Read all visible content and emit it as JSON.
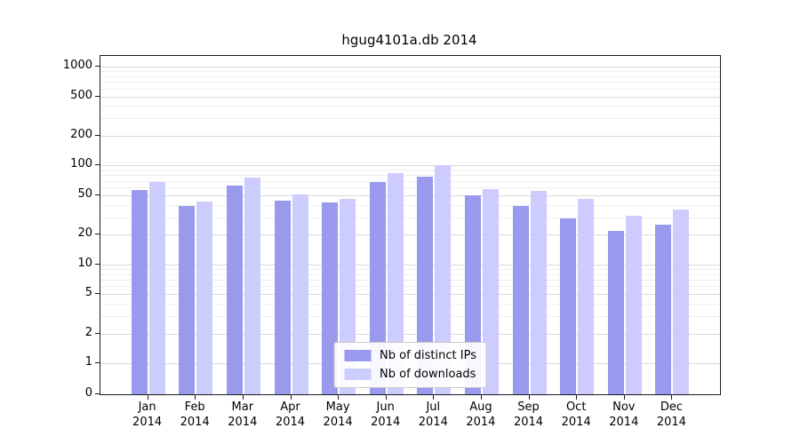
{
  "chart_data": {
    "type": "bar",
    "title": "hgug4101a.db 2014",
    "categories": [
      "Jan",
      "Feb",
      "Mar",
      "Apr",
      "May",
      "Jun",
      "Jul",
      "Aug",
      "Sep",
      "Oct",
      "Nov",
      "Dec"
    ],
    "year": "2014",
    "series": [
      {
        "name": "Nb of distinct IPs",
        "color": "#9999ee",
        "values": [
          57,
          39,
          62,
          44,
          42,
          68,
          77,
          50,
          39,
          29,
          22,
          25
        ]
      },
      {
        "name": "Nb of downloads",
        "color": "#ccccff",
        "values": [
          68,
          43,
          75,
          51,
          46,
          84,
          100,
          58,
          55,
          46,
          31,
          36
        ]
      }
    ],
    "yscale": "symlog",
    "yticks": [
      0,
      1,
      2,
      5,
      10,
      20,
      50,
      100,
      200,
      500,
      1000
    ],
    "ylim": [
      0,
      1250
    ],
    "grid": true,
    "legend_position": "lower center",
    "xlabel": "",
    "ylabel": ""
  }
}
